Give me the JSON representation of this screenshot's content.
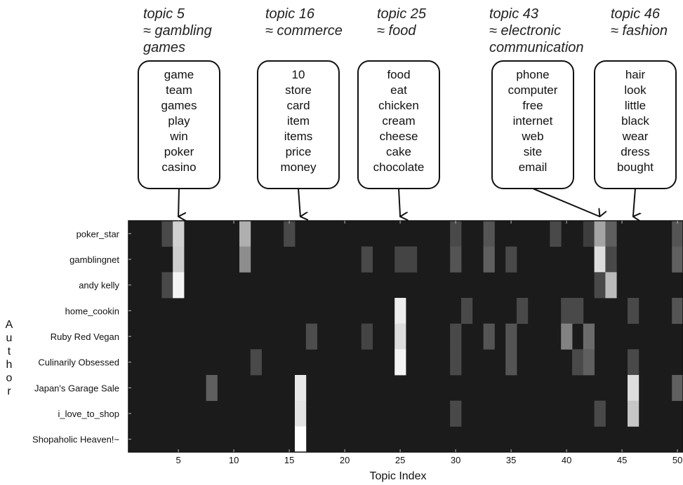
{
  "chart_data": {
    "type": "heatmap",
    "xlabel": "Topic Index",
    "ylabel": "Author",
    "x_ticks": [
      5,
      10,
      15,
      20,
      25,
      30,
      35,
      40,
      45,
      50
    ],
    "x_range": [
      0.5,
      50.5
    ],
    "authors": [
      "poker_star",
      "gamblingnet",
      "andy kelly",
      "home_cookin",
      "Ruby Red Vegan",
      "Culinarily Obsessed",
      "Japan's Garage Sale",
      "i_love_to_shop",
      "Shopaholic Heaven!~"
    ],
    "colormap": "grayscale (black = 0, white = high)",
    "cells": [
      {
        "author": 0,
        "topic": 4,
        "value": 0.2
      },
      {
        "author": 0,
        "topic": 5,
        "value": 0.8
      },
      {
        "author": 0,
        "topic": 11,
        "value": 0.65
      },
      {
        "author": 0,
        "topic": 15,
        "value": 0.2
      },
      {
        "author": 0,
        "topic": 30,
        "value": 0.2
      },
      {
        "author": 0,
        "topic": 33,
        "value": 0.25
      },
      {
        "author": 0,
        "topic": 39,
        "value": 0.2
      },
      {
        "author": 0,
        "topic": 42,
        "value": 0.15
      },
      {
        "author": 0,
        "topic": 43,
        "value": 0.6
      },
      {
        "author": 0,
        "topic": 44,
        "value": 0.3
      },
      {
        "author": 0,
        "topic": 50,
        "value": 0.25
      },
      {
        "author": 1,
        "topic": 5,
        "value": 0.78
      },
      {
        "author": 1,
        "topic": 11,
        "value": 0.5
      },
      {
        "author": 1,
        "topic": 22,
        "value": 0.2
      },
      {
        "author": 1,
        "topic": 25,
        "value": 0.18
      },
      {
        "author": 1,
        "topic": 26,
        "value": 0.18
      },
      {
        "author": 1,
        "topic": 30,
        "value": 0.25
      },
      {
        "author": 1,
        "topic": 33,
        "value": 0.3
      },
      {
        "author": 1,
        "topic": 35,
        "value": 0.2
      },
      {
        "author": 1,
        "topic": 43,
        "value": 0.85
      },
      {
        "author": 1,
        "topic": 44,
        "value": 0.2
      },
      {
        "author": 1,
        "topic": 50,
        "value": 0.3
      },
      {
        "author": 2,
        "topic": 4,
        "value": 0.2
      },
      {
        "author": 2,
        "topic": 5,
        "value": 0.95
      },
      {
        "author": 2,
        "topic": 43,
        "value": 0.2
      },
      {
        "author": 2,
        "topic": 44,
        "value": 0.7
      },
      {
        "author": 3,
        "topic": 25,
        "value": 0.92
      },
      {
        "author": 3,
        "topic": 31,
        "value": 0.2
      },
      {
        "author": 3,
        "topic": 36,
        "value": 0.2
      },
      {
        "author": 3,
        "topic": 40,
        "value": 0.2
      },
      {
        "author": 3,
        "topic": 41,
        "value": 0.2
      },
      {
        "author": 3,
        "topic": 46,
        "value": 0.2
      },
      {
        "author": 3,
        "topic": 50,
        "value": 0.25
      },
      {
        "author": 4,
        "topic": 17,
        "value": 0.22
      },
      {
        "author": 4,
        "topic": 22,
        "value": 0.18
      },
      {
        "author": 4,
        "topic": 25,
        "value": 0.85
      },
      {
        "author": 4,
        "topic": 30,
        "value": 0.2
      },
      {
        "author": 4,
        "topic": 33,
        "value": 0.25
      },
      {
        "author": 4,
        "topic": 35,
        "value": 0.25
      },
      {
        "author": 4,
        "topic": 40,
        "value": 0.45
      },
      {
        "author": 4,
        "topic": 42,
        "value": 0.35
      },
      {
        "author": 5,
        "topic": 12,
        "value": 0.2
      },
      {
        "author": 5,
        "topic": 25,
        "value": 0.95
      },
      {
        "author": 5,
        "topic": 30,
        "value": 0.2
      },
      {
        "author": 5,
        "topic": 35,
        "value": 0.25
      },
      {
        "author": 5,
        "topic": 41,
        "value": 0.2
      },
      {
        "author": 5,
        "topic": 42,
        "value": 0.3
      },
      {
        "author": 5,
        "topic": 46,
        "value": 0.2
      },
      {
        "author": 6,
        "topic": 8,
        "value": 0.3
      },
      {
        "author": 6,
        "topic": 16,
        "value": 0.9
      },
      {
        "author": 6,
        "topic": 46,
        "value": 0.85
      },
      {
        "author": 6,
        "topic": 50,
        "value": 0.3
      },
      {
        "author": 7,
        "topic": 16,
        "value": 0.88
      },
      {
        "author": 7,
        "topic": 30,
        "value": 0.2
      },
      {
        "author": 7,
        "topic": 43,
        "value": 0.2
      },
      {
        "author": 7,
        "topic": 46,
        "value": 0.75
      },
      {
        "author": 8,
        "topic": 16,
        "value": 1.0
      }
    ],
    "topic_annotations": [
      {
        "topic": 5,
        "title": [
          "topic 5",
          "≈ gambling",
          "games"
        ],
        "words": [
          "game",
          "team",
          "games",
          "play",
          "win",
          "poker",
          "casino"
        ]
      },
      {
        "topic": 16,
        "title": [
          "topic 16",
          "≈ commerce"
        ],
        "words": [
          "10",
          "store",
          "card",
          "item",
          "items",
          "price",
          "money"
        ]
      },
      {
        "topic": 25,
        "title": [
          "topic 25",
          "≈ food"
        ],
        "words": [
          "food",
          "eat",
          "chicken",
          "cream",
          "cheese",
          "cake",
          "chocolate"
        ]
      },
      {
        "topic": 43,
        "title": [
          "topic 43",
          "≈ electronic",
          "communication"
        ],
        "words": [
          "phone",
          "computer",
          "free",
          "internet",
          "web",
          "site",
          "email"
        ]
      },
      {
        "topic": 46,
        "title": [
          "topic 46",
          "≈ fashion"
        ],
        "words": [
          "hair",
          "look",
          "little",
          "black",
          "wear",
          "dress",
          "bought"
        ]
      }
    ]
  }
}
